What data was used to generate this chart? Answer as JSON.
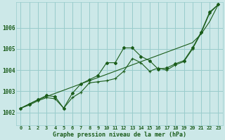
{
  "xlabel": "Graphe pression niveau de la mer (hPa)",
  "background_color": "#cce8e8",
  "grid_color": "#99cccc",
  "line_color": "#1a5c1a",
  "x_ticks": [
    0,
    1,
    2,
    3,
    4,
    5,
    6,
    7,
    8,
    9,
    10,
    11,
    12,
    13,
    14,
    15,
    16,
    17,
    18,
    19,
    20,
    21,
    22,
    23
  ],
  "y_ticks": [
    1002,
    1003,
    1004,
    1005,
    1006
  ],
  "ylim": [
    1001.4,
    1007.2
  ],
  "xlim": [
    -0.5,
    23.5
  ],
  "series_markers": [
    1002.2,
    1002.4,
    1002.6,
    1002.8,
    1002.75,
    1002.2,
    1002.9,
    1003.35,
    1003.55,
    1003.75,
    1004.35,
    1004.35,
    1005.05,
    1005.05,
    1004.65,
    1004.45,
    1004.05,
    1004.1,
    1004.3,
    1004.45,
    1005.05,
    1005.8,
    1006.75,
    1007.1
  ],
  "series_smooth": [
    1002.2,
    1002.35,
    1002.55,
    1002.7,
    1002.65,
    1002.2,
    1002.7,
    1002.95,
    1003.4,
    1003.45,
    1003.5,
    1003.6,
    1003.95,
    1004.55,
    1004.35,
    1003.95,
    1004.1,
    1004.0,
    1004.25,
    1004.4,
    1005.0,
    1005.75,
    1006.7,
    1007.1
  ],
  "series_trend": [
    1002.2,
    1002.4,
    1002.6,
    1002.75,
    1002.9,
    1003.05,
    1003.2,
    1003.35,
    1003.5,
    1003.65,
    1003.8,
    1003.95,
    1004.1,
    1004.25,
    1004.4,
    1004.55,
    1004.7,
    1004.85,
    1005.0,
    1005.15,
    1005.3,
    1005.7,
    1006.3,
    1007.1
  ]
}
